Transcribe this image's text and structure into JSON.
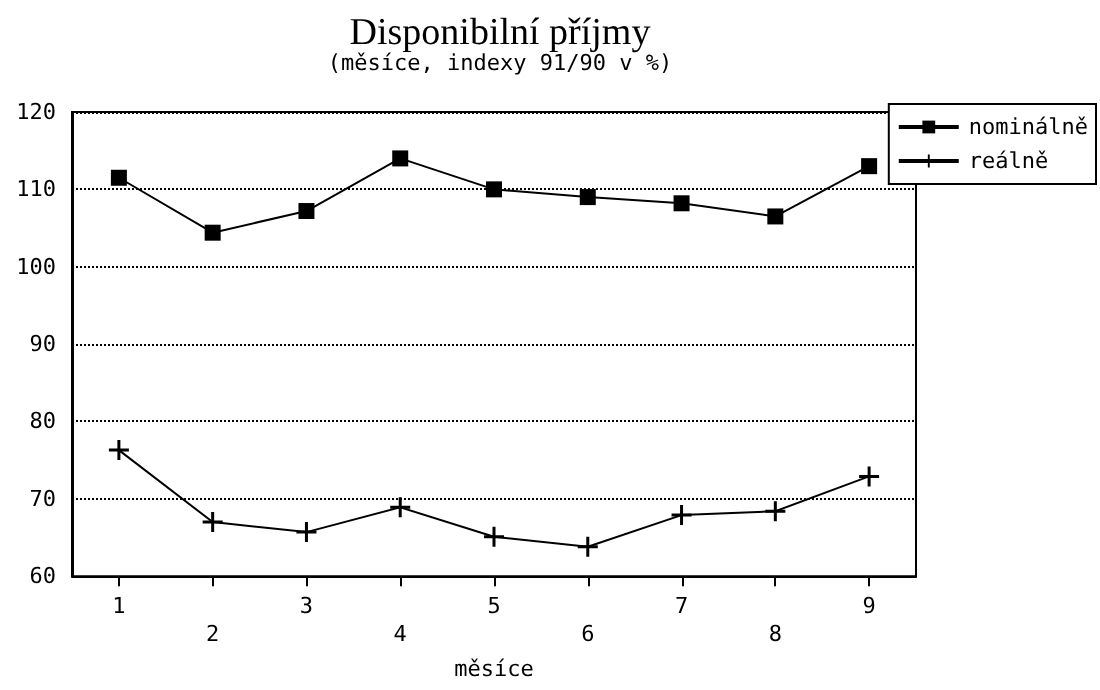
{
  "chart_data": {
    "type": "line",
    "title": "Disponibilní příjmy",
    "subtitle": "(měsíce, indexy 91/90 v %)",
    "xlabel": "měsíce",
    "categories": [
      "1",
      "2",
      "3",
      "4",
      "5",
      "6",
      "7",
      "8",
      "9"
    ],
    "series": [
      {
        "name": "nominálně",
        "color": "#000000",
        "marker": "square",
        "values": [
          111.5,
          104.4,
          107.2,
          114,
          110,
          109,
          108.2,
          106.5,
          113
        ]
      },
      {
        "name": "reálně",
        "color": "#000000",
        "marker": "cross",
        "values": [
          76.3,
          67,
          65.7,
          68.9,
          65.1,
          63.8,
          67.9,
          68.4,
          72.9
        ]
      }
    ],
    "ylim": [
      60,
      120
    ],
    "yticks": [
      60,
      70,
      80,
      90,
      100,
      110,
      120
    ],
    "grid": "y",
    "legend": "top right",
    "line_style": "solid"
  }
}
